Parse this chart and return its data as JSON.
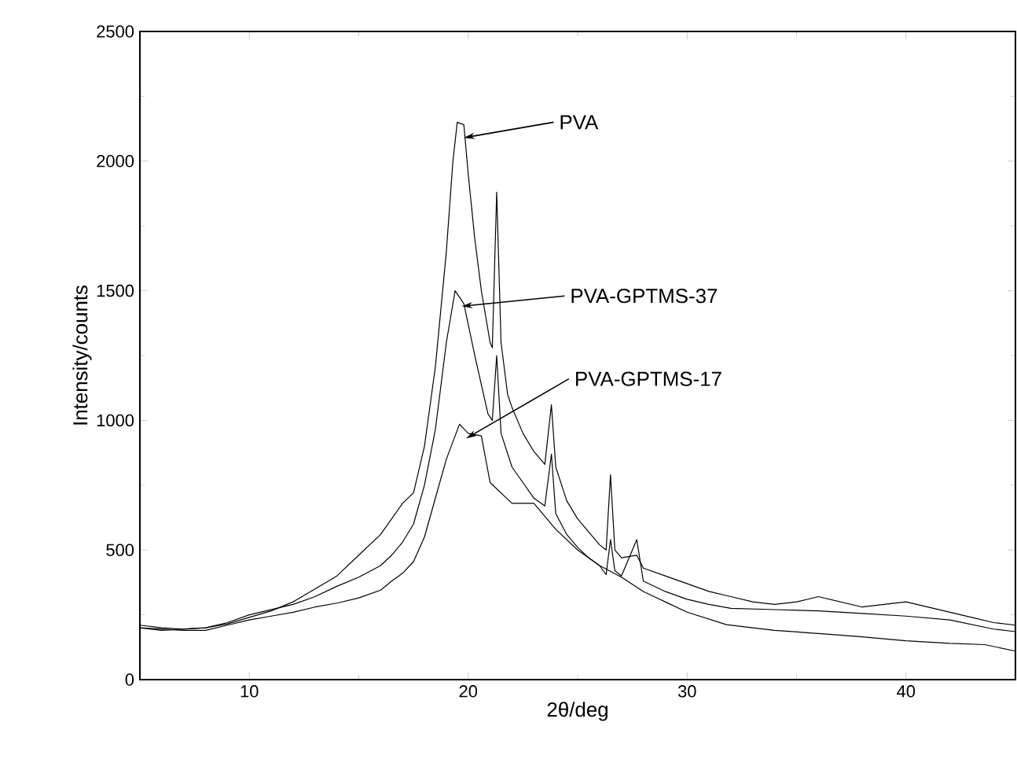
{
  "chart_data": {
    "type": "line",
    "xlabel": "2θ/deg",
    "ylabel": "Intensity/counts",
    "xlim": [
      5,
      45
    ],
    "xticks": [
      10,
      20,
      30,
      40
    ],
    "ylim": [
      0,
      2500
    ],
    "yticks": [
      0,
      500,
      1000,
      1500,
      2000,
      2500
    ],
    "grid": false,
    "legend": false,
    "marker": "none",
    "line_style": "solid",
    "annotations": [
      {
        "text": "PVA",
        "x": 19.8,
        "y": 2090
      },
      {
        "text": "PVA-GPTMS-37",
        "x": 19.7,
        "y": 1440
      },
      {
        "text": "PVA-GPTMS-17",
        "x": 19.9,
        "y": 930
      }
    ],
    "series": [
      {
        "color": "#000000",
        "x": [
          5,
          6,
          7,
          8,
          9,
          10,
          11,
          12,
          13,
          14,
          15,
          16,
          17,
          17.5,
          18,
          18.5,
          19,
          19.3,
          19.5,
          19.8,
          20,
          20.3,
          20.6,
          21.0,
          21.1,
          21.3,
          21.5,
          21.8,
          22,
          22.5,
          23,
          23.5,
          23.8,
          24.0,
          24.5,
          25,
          25.5,
          26,
          26.3,
          26.5,
          26.7,
          27,
          27.7,
          28,
          29,
          30,
          31,
          32,
          33,
          34,
          35,
          36,
          37,
          38,
          39,
          40,
          41,
          42,
          43,
          44,
          45
        ],
        "values": [
          200,
          190,
          195,
          200,
          215,
          240,
          265,
          300,
          350,
          400,
          480,
          560,
          680,
          720,
          900,
          1207,
          1650,
          2000,
          2150,
          2140,
          1950,
          1700,
          1500,
          1300,
          1280,
          1880,
          1300,
          1100,
          1050,
          950,
          880,
          830,
          1060,
          820,
          690,
          620,
          570,
          520,
          500,
          790,
          500,
          470,
          480,
          430,
          400,
          370,
          340,
          320,
          300,
          290,
          300,
          320,
          300,
          280,
          290,
          300,
          280,
          260,
          240,
          220,
          210
        ]
      },
      {
        "color": "#000000",
        "x": [
          5,
          6,
          7,
          8,
          9,
          10,
          11,
          12,
          13,
          14,
          15,
          16,
          16.5,
          17,
          17.5,
          18,
          18.5,
          19,
          19.4,
          19.8,
          20.3,
          20.9,
          21.1,
          21.3,
          21.5,
          22,
          22.5,
          23,
          23.5,
          23.8,
          24,
          24.5,
          25,
          25.5,
          26,
          26.3,
          26.5,
          26.7,
          27,
          27.7,
          28,
          29,
          30,
          31,
          32,
          34,
          36,
          38,
          40,
          42,
          44,
          45
        ],
        "values": [
          210,
          200,
          195,
          200,
          220,
          250,
          270,
          290,
          320,
          360,
          395,
          440,
          480,
          530,
          600,
          750,
          965,
          1300,
          1500,
          1450,
          1250,
          1025,
          1000,
          1250,
          950,
          820,
          760,
          700,
          670,
          870,
          640,
          560,
          510,
          470,
          440,
          405,
          540,
          420,
          400,
          540,
          380,
          340,
          310,
          290,
          275,
          270,
          265,
          255,
          245,
          230,
          195,
          185
        ]
      },
      {
        "color": "#000000",
        "x": [
          5,
          6,
          7,
          8,
          9,
          10,
          11,
          12,
          13,
          14,
          15,
          16,
          16.5,
          17,
          17.5,
          18,
          18.5,
          19,
          19.6,
          20,
          20.6,
          21,
          22,
          23,
          24,
          25,
          26,
          27,
          28,
          29,
          30,
          31.8,
          33,
          34,
          36.5,
          38,
          40,
          42,
          43.6,
          45
        ],
        "values": [
          200,
          195,
          190,
          190,
          210,
          230,
          245,
          260,
          280,
          295,
          315,
          345,
          380,
          410,
          455,
          550,
          700,
          850,
          985,
          950,
          940,
          760,
          680,
          680,
          580,
          500,
          440,
          395,
          340,
          300,
          260,
          212,
          200,
          190,
          175,
          165,
          150,
          140,
          135,
          110
        ]
      }
    ]
  }
}
